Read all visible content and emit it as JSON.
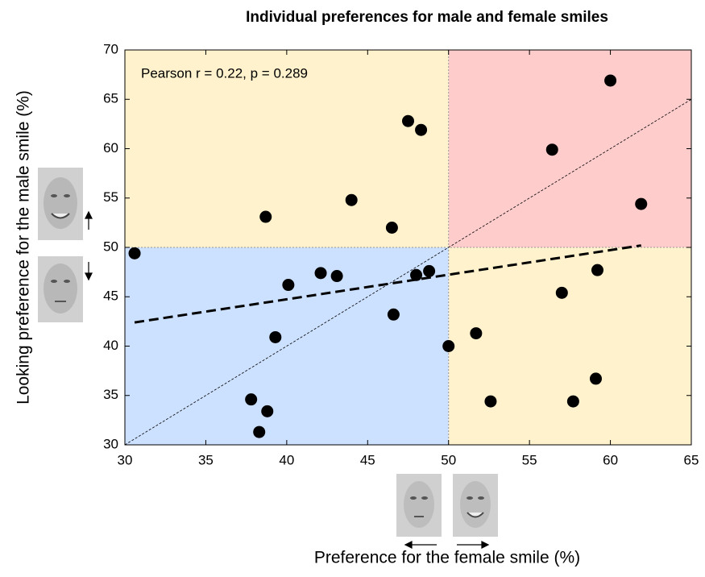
{
  "chart_data": {
    "type": "scatter",
    "title": "Individual preferences for male and female smiles",
    "x_label": "Preference for the female smile (%)",
    "y_label": "Looking preference for the male smile (%)",
    "annotation": "Pearson r = 0.22, p = 0.289",
    "xlim": [
      30,
      65
    ],
    "ylim": [
      30,
      70
    ],
    "xticks": [
      30,
      35,
      40,
      45,
      50,
      55,
      60,
      65
    ],
    "yticks": [
      30,
      35,
      40,
      45,
      50,
      55,
      60,
      65,
      70
    ],
    "divider": 50,
    "quadrant_colors": {
      "low_low": "#cce0ff",
      "mixed": "#fff2cc",
      "high_high": "#ffcccc"
    },
    "series": [
      {
        "color": "#000000",
        "x": [
          30.6,
          38.7,
          44.0,
          46.5,
          47.5,
          48.3,
          40.1,
          42.1,
          43.1,
          48.0,
          48.8,
          46.6,
          39.3,
          50.0,
          37.8,
          38.8,
          38.3,
          51.7,
          52.6,
          57.7,
          59.1,
          57.0,
          59.2,
          56.4,
          60.0,
          61.9
        ],
        "values": [
          49.4,
          53.1,
          54.8,
          52.0,
          62.8,
          61.9,
          46.2,
          47.4,
          47.1,
          47.2,
          47.6,
          43.2,
          40.9,
          40.0,
          34.6,
          33.4,
          31.3,
          41.3,
          34.4,
          34.4,
          36.7,
          45.4,
          47.7,
          59.9,
          66.9,
          54.4
        ]
      }
    ],
    "trend_line": {
      "x": [
        30.6,
        61.9
      ],
      "values": [
        42.4,
        50.2
      ]
    },
    "reference_line": {
      "x": [
        30,
        65
      ],
      "values": [
        30,
        65
      ]
    }
  }
}
